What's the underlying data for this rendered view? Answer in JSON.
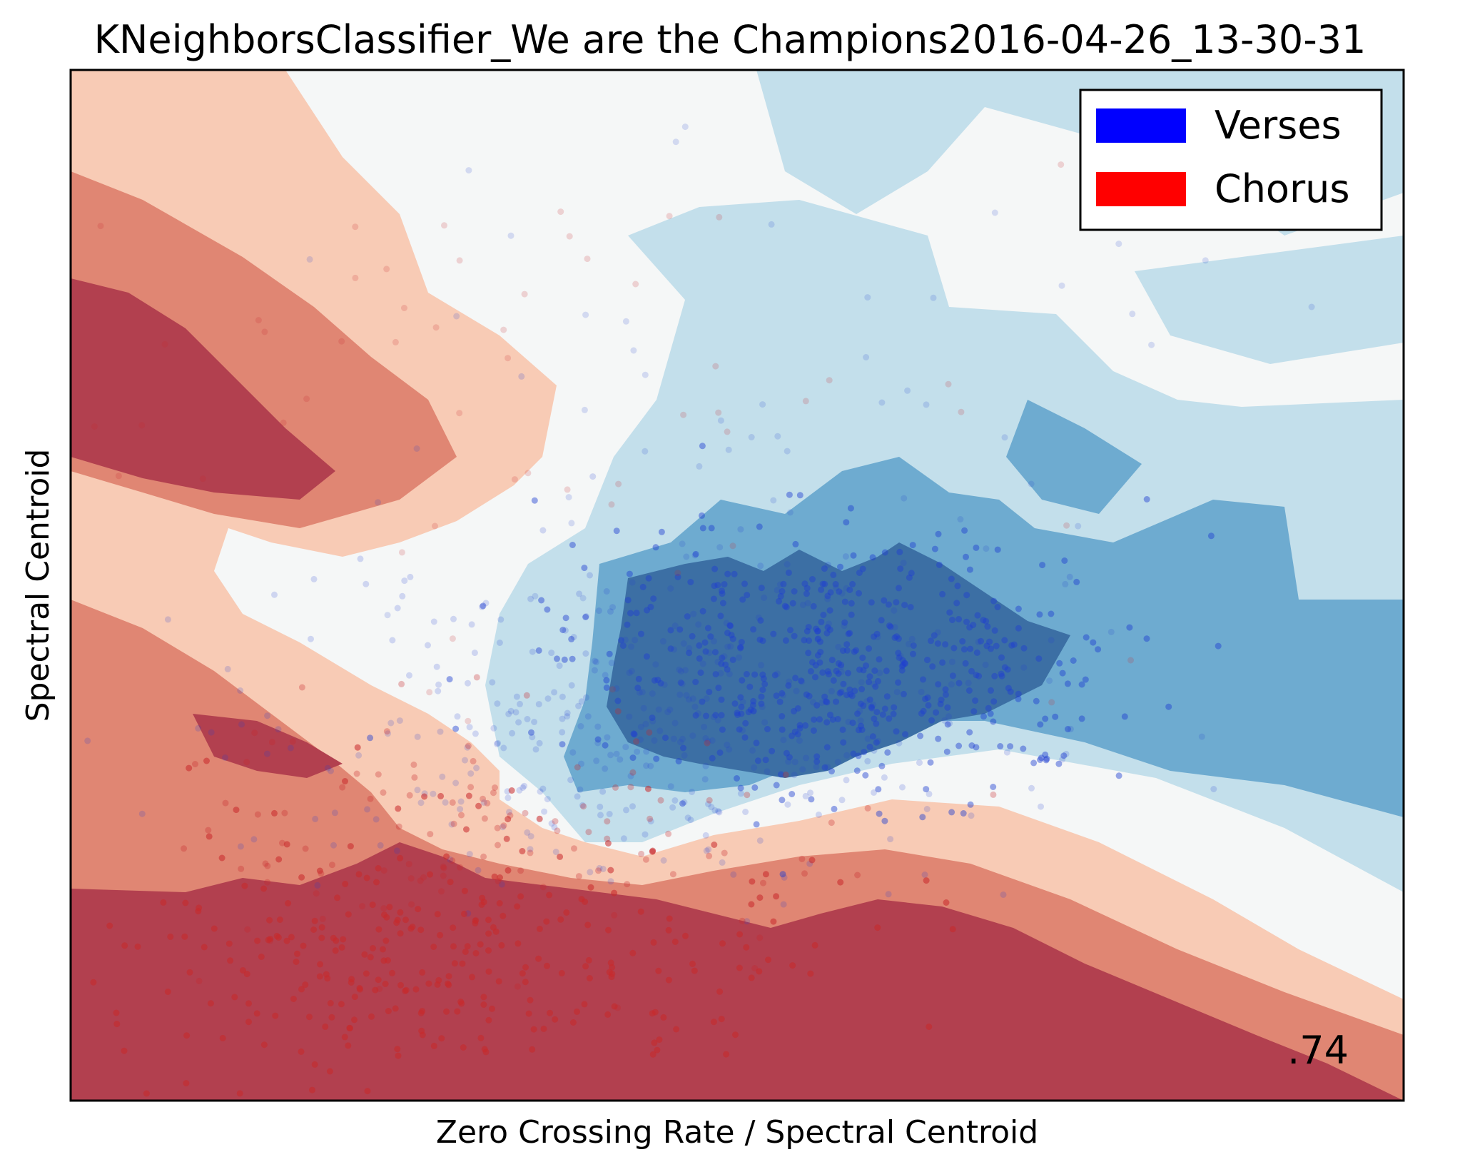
{
  "chart_data": {
    "type": "scatter",
    "title": "KNeighborsClassifier_We are the Champions2016-04-26_13-30-31",
    "xlabel": "Zero Crossing Rate / Spectral Centroid",
    "ylabel": "Spectral Centroid",
    "xticks": [],
    "yticks": [],
    "grid": false,
    "legend_position": "top-right",
    "legend": [
      {
        "label": "Verses",
        "color": "#0000ff"
      },
      {
        "label": "Chorus",
        "color": "#ff0000"
      }
    ],
    "background": "decision-surface",
    "region_colors": {
      "chorus_strong": "#b2404f",
      "chorus_medium": "#e08673",
      "chorus_weak": "#f8cbb5",
      "neutral": "#f5f7f7",
      "verse_weak": "#c3dfeb",
      "verse_medium": "#6eabd0",
      "verse_strong": "#3c6fa4"
    },
    "series": [
      {
        "name": "Verses",
        "color": "#1f3fd0"
      },
      {
        "name": "Chorus",
        "color": "#c8282a"
      }
    ],
    "score": ".74"
  }
}
